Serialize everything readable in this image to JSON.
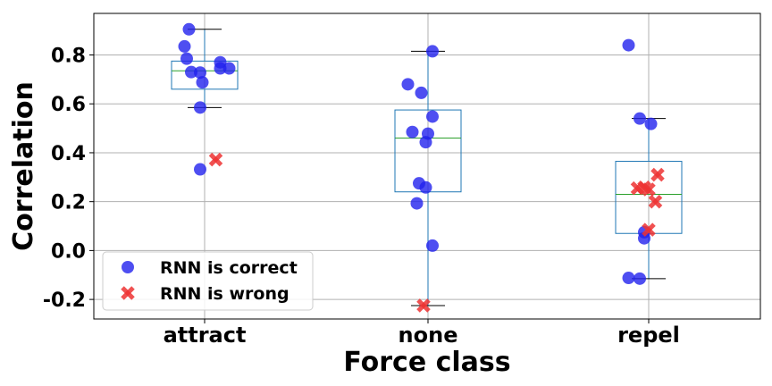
{
  "chart_data": {
    "type": "box",
    "xlabel": "Force class",
    "ylabel": "Correlation",
    "ylim": [
      -0.28,
      0.97
    ],
    "yticks": [
      -0.2,
      0.0,
      0.2,
      0.4,
      0.6,
      0.8
    ],
    "ytick_labels": [
      "-0.2",
      "0.0",
      "0.2",
      "0.4",
      "0.6",
      "0.8"
    ],
    "grid": true,
    "legend_position": "lower-left",
    "categories": [
      "attract",
      "none",
      "repel"
    ],
    "boxes": [
      {
        "category": "attract",
        "q1": 0.66,
        "median": 0.735,
        "q3": 0.775,
        "whisker_low": 0.585,
        "whisker_high": 0.905
      },
      {
        "category": "none",
        "q1": 0.24,
        "median": 0.46,
        "q3": 0.575,
        "whisker_low": -0.225,
        "whisker_high": 0.815
      },
      {
        "category": "repel",
        "q1": 0.07,
        "median": 0.23,
        "q3": 0.365,
        "whisker_low": -0.115,
        "whisker_high": 0.54
      }
    ],
    "series": [
      {
        "name": "RNN is correct",
        "marker": "circle",
        "color": "#2222ee",
        "points": [
          {
            "category": "attract",
            "jitter": -0.07,
            "y": 0.905
          },
          {
            "category": "attract",
            "jitter": -0.09,
            "y": 0.835
          },
          {
            "category": "attract",
            "jitter": -0.08,
            "y": 0.785
          },
          {
            "category": "attract",
            "jitter": 0.07,
            "y": 0.77
          },
          {
            "category": "attract",
            "jitter": 0.11,
            "y": 0.745
          },
          {
            "category": "attract",
            "jitter": 0.07,
            "y": 0.745
          },
          {
            "category": "attract",
            "jitter": -0.06,
            "y": 0.73
          },
          {
            "category": "attract",
            "jitter": -0.02,
            "y": 0.728
          },
          {
            "category": "attract",
            "jitter": -0.01,
            "y": 0.688
          },
          {
            "category": "attract",
            "jitter": -0.02,
            "y": 0.585
          },
          {
            "category": "attract",
            "jitter": -0.02,
            "y": 0.332
          },
          {
            "category": "none",
            "jitter": 0.02,
            "y": 0.815
          },
          {
            "category": "none",
            "jitter": -0.09,
            "y": 0.68
          },
          {
            "category": "none",
            "jitter": -0.03,
            "y": 0.645
          },
          {
            "category": "none",
            "jitter": 0.02,
            "y": 0.548
          },
          {
            "category": "none",
            "jitter": -0.07,
            "y": 0.485
          },
          {
            "category": "none",
            "jitter": 0.0,
            "y": 0.478
          },
          {
            "category": "none",
            "jitter": -0.01,
            "y": 0.443
          },
          {
            "category": "none",
            "jitter": -0.04,
            "y": 0.275
          },
          {
            "category": "none",
            "jitter": -0.01,
            "y": 0.258
          },
          {
            "category": "none",
            "jitter": -0.05,
            "y": 0.193
          },
          {
            "category": "none",
            "jitter": 0.02,
            "y": 0.02
          },
          {
            "category": "repel",
            "jitter": -0.09,
            "y": 0.84
          },
          {
            "category": "repel",
            "jitter": -0.04,
            "y": 0.54
          },
          {
            "category": "repel",
            "jitter": 0.01,
            "y": 0.518
          },
          {
            "category": "repel",
            "jitter": -0.02,
            "y": 0.075
          },
          {
            "category": "repel",
            "jitter": -0.02,
            "y": 0.05
          },
          {
            "category": "repel",
            "jitter": -0.09,
            "y": -0.112
          },
          {
            "category": "repel",
            "jitter": -0.04,
            "y": -0.115
          }
        ]
      },
      {
        "name": "RNN is wrong",
        "marker": "x",
        "color": "#ee3333",
        "points": [
          {
            "category": "attract",
            "jitter": 0.05,
            "y": 0.372
          },
          {
            "category": "none",
            "jitter": -0.02,
            "y": -0.225
          },
          {
            "category": "repel",
            "jitter": 0.04,
            "y": 0.31
          },
          {
            "category": "repel",
            "jitter": -0.05,
            "y": 0.255
          },
          {
            "category": "repel",
            "jitter": -0.02,
            "y": 0.258
          },
          {
            "category": "repel",
            "jitter": 0.0,
            "y": 0.25
          },
          {
            "category": "repel",
            "jitter": 0.03,
            "y": 0.2
          },
          {
            "category": "repel",
            "jitter": 0.0,
            "y": 0.085
          }
        ]
      }
    ]
  }
}
